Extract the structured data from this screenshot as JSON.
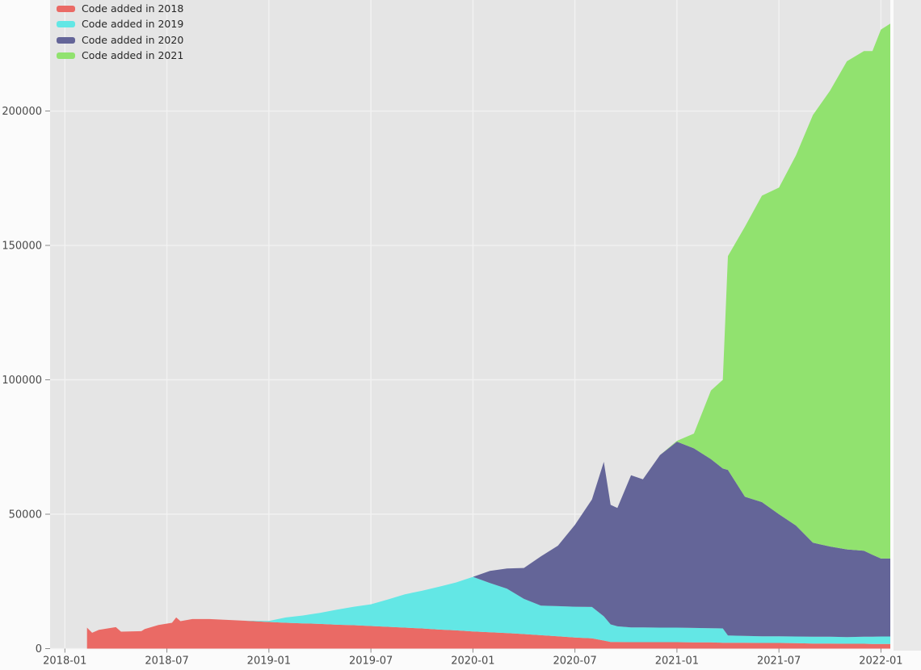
{
  "figure": {
    "background": "#fbfbfb",
    "plot_background": "#e5e5e5",
    "grid_color": "#f2f2f2",
    "tick_mark_color": "#8a8a8a",
    "tick_label_color": "#4a4a4a",
    "outside_strip_color": "#e9e9e9"
  },
  "legend": {
    "position": "upper left",
    "items": [
      {
        "label": "Code added in 2018",
        "color": "#ea6a65"
      },
      {
        "label": "Code added in 2019",
        "color": "#63e7e5"
      },
      {
        "label": "Code added in 2020",
        "color": "#646598"
      },
      {
        "label": "Code added in 2021",
        "color": "#91e26f"
      }
    ]
  },
  "chart_data": {
    "type": "area",
    "stacked": true,
    "grid": true,
    "legend_position": "upper left",
    "x_unit": "months since 2018-01",
    "xlim": [
      -0.87,
      48.55
    ],
    "ylim": [
      0,
      241300
    ],
    "yticks": [
      0,
      50000,
      100000,
      150000,
      200000
    ],
    "xticks": [
      {
        "pos": 0,
        "label": "2018-01"
      },
      {
        "pos": 6,
        "label": "2018-07"
      },
      {
        "pos": 12,
        "label": "2019-01"
      },
      {
        "pos": 18,
        "label": "2019-07"
      },
      {
        "pos": 24,
        "label": "2020-01"
      },
      {
        "pos": 30,
        "label": "2020-07"
      },
      {
        "pos": 36,
        "label": "2021-01"
      },
      {
        "pos": 42,
        "label": "2021-07"
      },
      {
        "pos": 48,
        "label": "2022-01"
      }
    ],
    "x": [
      1.3,
      1.6,
      2,
      3,
      3.3,
      4.5,
      4.7,
      5.5,
      6.3,
      6.55,
      6.8,
      7.5,
      8.5,
      9.5,
      10.5,
      12,
      13,
      14,
      15,
      16,
      17,
      18,
      19,
      20,
      21,
      22,
      23,
      24,
      25,
      26,
      27,
      28,
      29,
      30,
      31,
      31.7,
      32.1,
      32.5,
      33.3,
      34,
      35,
      36,
      37,
      38,
      38.7,
      39,
      40,
      41,
      42,
      43,
      44,
      45,
      46,
      47,
      47.5,
      48,
      48.55
    ],
    "series": [
      {
        "name": "Code added in 2018",
        "color": "#ea6a65",
        "values": [
          7800,
          5900,
          7000,
          8000,
          6300,
          6500,
          7300,
          8800,
          9600,
          11600,
          10200,
          11000,
          11000,
          10700,
          10400,
          9900,
          9600,
          9400,
          9200,
          8900,
          8700,
          8400,
          8100,
          7800,
          7500,
          7100,
          6800,
          6400,
          6100,
          5800,
          5400,
          5000,
          4600,
          4100,
          3800,
          3000,
          2500,
          2500,
          2400,
          2400,
          2400,
          2400,
          2300,
          2300,
          2200,
          2200,
          2200,
          2100,
          2100,
          2000,
          1900,
          1900,
          1800,
          1800,
          1700,
          1700,
          1700
        ]
      },
      {
        "name": "Code added in 2019",
        "color": "#63e7e5",
        "values": [
          0,
          0,
          0,
          0,
          0,
          0,
          0,
          0,
          0,
          0,
          0,
          0,
          0,
          0,
          0,
          400,
          2000,
          2900,
          4100,
          5600,
          6900,
          8100,
          10200,
          12400,
          14000,
          15900,
          17800,
          20300,
          18300,
          16500,
          13100,
          11000,
          11200,
          11500,
          11700,
          9000,
          6500,
          5800,
          5500,
          5500,
          5400,
          5400,
          5400,
          5300,
          5300,
          2700,
          2500,
          2500,
          2500,
          2500,
          2500,
          2500,
          2500,
          2600,
          2700,
          2800,
          2800
        ]
      },
      {
        "name": "Code added in 2020",
        "color": "#646598",
        "values": [
          0,
          0,
          0,
          0,
          0,
          0,
          0,
          0,
          0,
          0,
          0,
          0,
          0,
          0,
          0,
          0,
          0,
          0,
          0,
          0,
          0,
          0,
          0,
          0,
          0,
          0,
          0,
          0,
          4500,
          7500,
          11500,
          18300,
          22500,
          30400,
          40000,
          57500,
          44500,
          44000,
          56600,
          55100,
          64200,
          69200,
          66800,
          62900,
          59500,
          61600,
          51800,
          49900,
          45400,
          41300,
          35000,
          33600,
          32600,
          32000,
          30500,
          29000,
          29000
        ]
      },
      {
        "name": "Code added in 2021",
        "color": "#91e26f",
        "values": [
          0,
          0,
          0,
          0,
          0,
          0,
          0,
          0,
          0,
          0,
          0,
          0,
          0,
          0,
          0,
          0,
          0,
          0,
          0,
          0,
          0,
          0,
          0,
          0,
          0,
          0,
          0,
          0,
          0,
          0,
          0,
          0,
          0,
          0,
          0,
          0,
          0,
          0,
          0,
          0,
          0,
          300,
          5500,
          25500,
          33000,
          79500,
          100500,
          114000,
          121500,
          137700,
          159100,
          169500,
          181600,
          185900,
          187400,
          196800,
          199000
        ]
      }
    ]
  }
}
